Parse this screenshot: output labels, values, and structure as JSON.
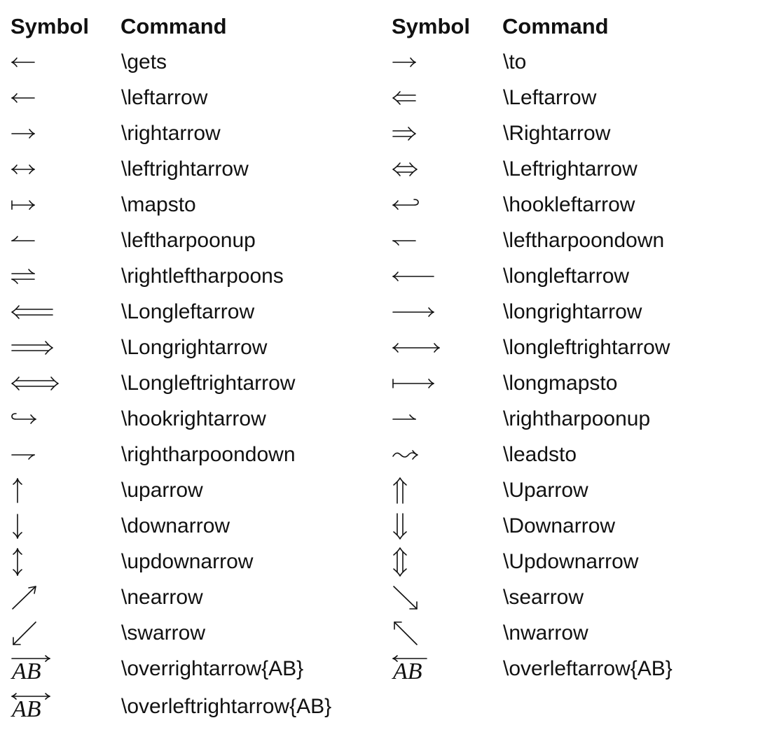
{
  "table": {
    "headers": [
      "Symbol",
      "Command",
      "Symbol",
      "Command"
    ],
    "left": [
      {
        "icon": "left-arrow-icon",
        "command": "\\gets"
      },
      {
        "icon": "left-arrow-icon",
        "command": "\\leftarrow"
      },
      {
        "icon": "right-arrow-icon",
        "command": "\\rightarrow"
      },
      {
        "icon": "left-right-arrow-icon",
        "command": "\\leftrightarrow"
      },
      {
        "icon": "maps-to-arrow-icon",
        "command": "\\mapsto"
      },
      {
        "icon": "left-harpoon-up-icon",
        "command": "\\leftharpoonup"
      },
      {
        "icon": "right-left-harpoons-icon",
        "command": "\\rightleftharpoons"
      },
      {
        "icon": "long-double-left-arrow-icon",
        "command": "\\Longleftarrow"
      },
      {
        "icon": "long-double-right-arrow-icon",
        "command": "\\Longrightarrow"
      },
      {
        "icon": "long-double-left-right-arrow-icon",
        "command": "\\Longleftrightarrow"
      },
      {
        "icon": "hook-right-arrow-icon",
        "command": "\\hookrightarrow"
      },
      {
        "icon": "right-harpoon-down-icon",
        "command": "\\rightharpoondown"
      },
      {
        "icon": "up-arrow-icon",
        "command": "\\uparrow"
      },
      {
        "icon": "down-arrow-icon",
        "command": "\\downarrow"
      },
      {
        "icon": "up-down-arrow-icon",
        "command": "\\updownarrow"
      },
      {
        "icon": "north-east-arrow-icon",
        "command": "\\nearrow"
      },
      {
        "icon": "south-west-arrow-icon",
        "command": "\\swarrow"
      },
      {
        "icon": "over-right-arrow-ab-icon",
        "symbol_text": "AB",
        "command": "\\overrightarrow{AB}"
      },
      {
        "icon": "over-left-right-arrow-ab-icon",
        "symbol_text": "AB",
        "command": "\\overleftrightarrow{AB}"
      }
    ],
    "right": [
      {
        "icon": "right-arrow-icon",
        "command": "\\to"
      },
      {
        "icon": "double-left-arrow-icon",
        "command": "\\Leftarrow"
      },
      {
        "icon": "double-right-arrow-icon",
        "command": "\\Rightarrow"
      },
      {
        "icon": "double-left-right-arrow-icon",
        "command": "\\Leftrightarrow"
      },
      {
        "icon": "hook-left-arrow-icon",
        "command": "\\hookleftarrow"
      },
      {
        "icon": "left-harpoon-down-icon",
        "command": "\\leftharpoondown"
      },
      {
        "icon": "long-left-arrow-icon",
        "command": "\\longleftarrow"
      },
      {
        "icon": "long-right-arrow-icon",
        "command": "\\longrightarrow"
      },
      {
        "icon": "long-left-right-arrow-icon",
        "command": "\\longleftrightarrow"
      },
      {
        "icon": "long-maps-to-arrow-icon",
        "command": "\\longmapsto"
      },
      {
        "icon": "right-harpoon-up-icon",
        "command": "\\rightharpoonup"
      },
      {
        "icon": "leads-to-arrow-icon",
        "command": "\\leadsto"
      },
      {
        "icon": "double-up-arrow-icon",
        "command": "\\Uparrow"
      },
      {
        "icon": "double-down-arrow-icon",
        "command": "\\Downarrow"
      },
      {
        "icon": "double-up-down-arrow-icon",
        "command": "\\Updownarrow"
      },
      {
        "icon": "south-east-arrow-icon",
        "command": "\\searrow"
      },
      {
        "icon": "north-west-arrow-icon",
        "command": "\\nwarrow"
      },
      {
        "icon": "over-left-arrow-ab-icon",
        "symbol_text": "AB",
        "command": "\\overleftarrow{AB}"
      }
    ]
  }
}
